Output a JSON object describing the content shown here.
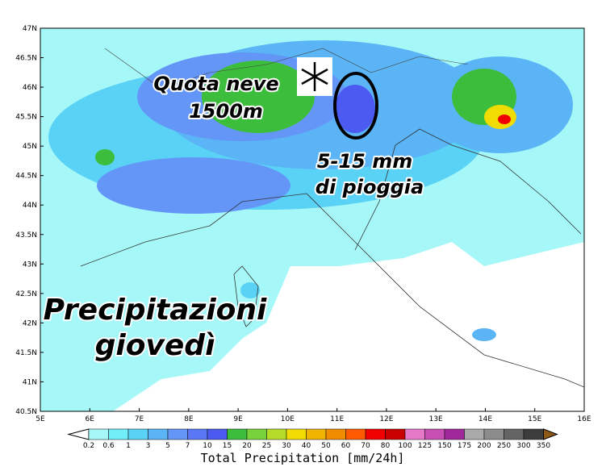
{
  "map": {
    "lat_labels": [
      "47N",
      "46.5N",
      "46N",
      "45.5N",
      "45N",
      "44.5N",
      "44N",
      "43.5N",
      "43N",
      "42.5N",
      "42N",
      "41.5N",
      "41N",
      "40.5N"
    ],
    "lon_labels": [
      "5E",
      "6E",
      "7E",
      "8E",
      "9E",
      "10E",
      "11E",
      "12E",
      "13E",
      "14E",
      "15E",
      "16E"
    ],
    "annotations": {
      "snow_level": [
        "Quota neve",
        "1500m"
      ],
      "rain": [
        "5-15 mm",
        "di pioggia"
      ],
      "title": [
        "Precipitazioni",
        "giovedì"
      ]
    }
  },
  "colorbar": {
    "title": "Total Precipitation [mm/24h]",
    "labels": [
      "0.2",
      "0.6",
      "1",
      "3",
      "5",
      "7",
      "10",
      "15",
      "20",
      "25",
      "30",
      "40",
      "50",
      "60",
      "70",
      "80",
      "100",
      "125",
      "150",
      "175",
      "200",
      "250",
      "300",
      "350"
    ],
    "colors": [
      "#ffffff",
      "#a6f8f8",
      "#72eef8",
      "#5ad2f5",
      "#5ab4f5",
      "#6496f8",
      "#5a78f5",
      "#4b5af0",
      "#3cbe3c",
      "#78d23c",
      "#b4dc28",
      "#f0dc00",
      "#f0b400",
      "#f08c00",
      "#ff5a00",
      "#f00000",
      "#c80000",
      "#e678c8",
      "#c850b4",
      "#a0289b",
      "#aaaaaa",
      "#8c8c8c",
      "#646464",
      "#3c3c3c",
      "#8c5a14"
    ]
  }
}
